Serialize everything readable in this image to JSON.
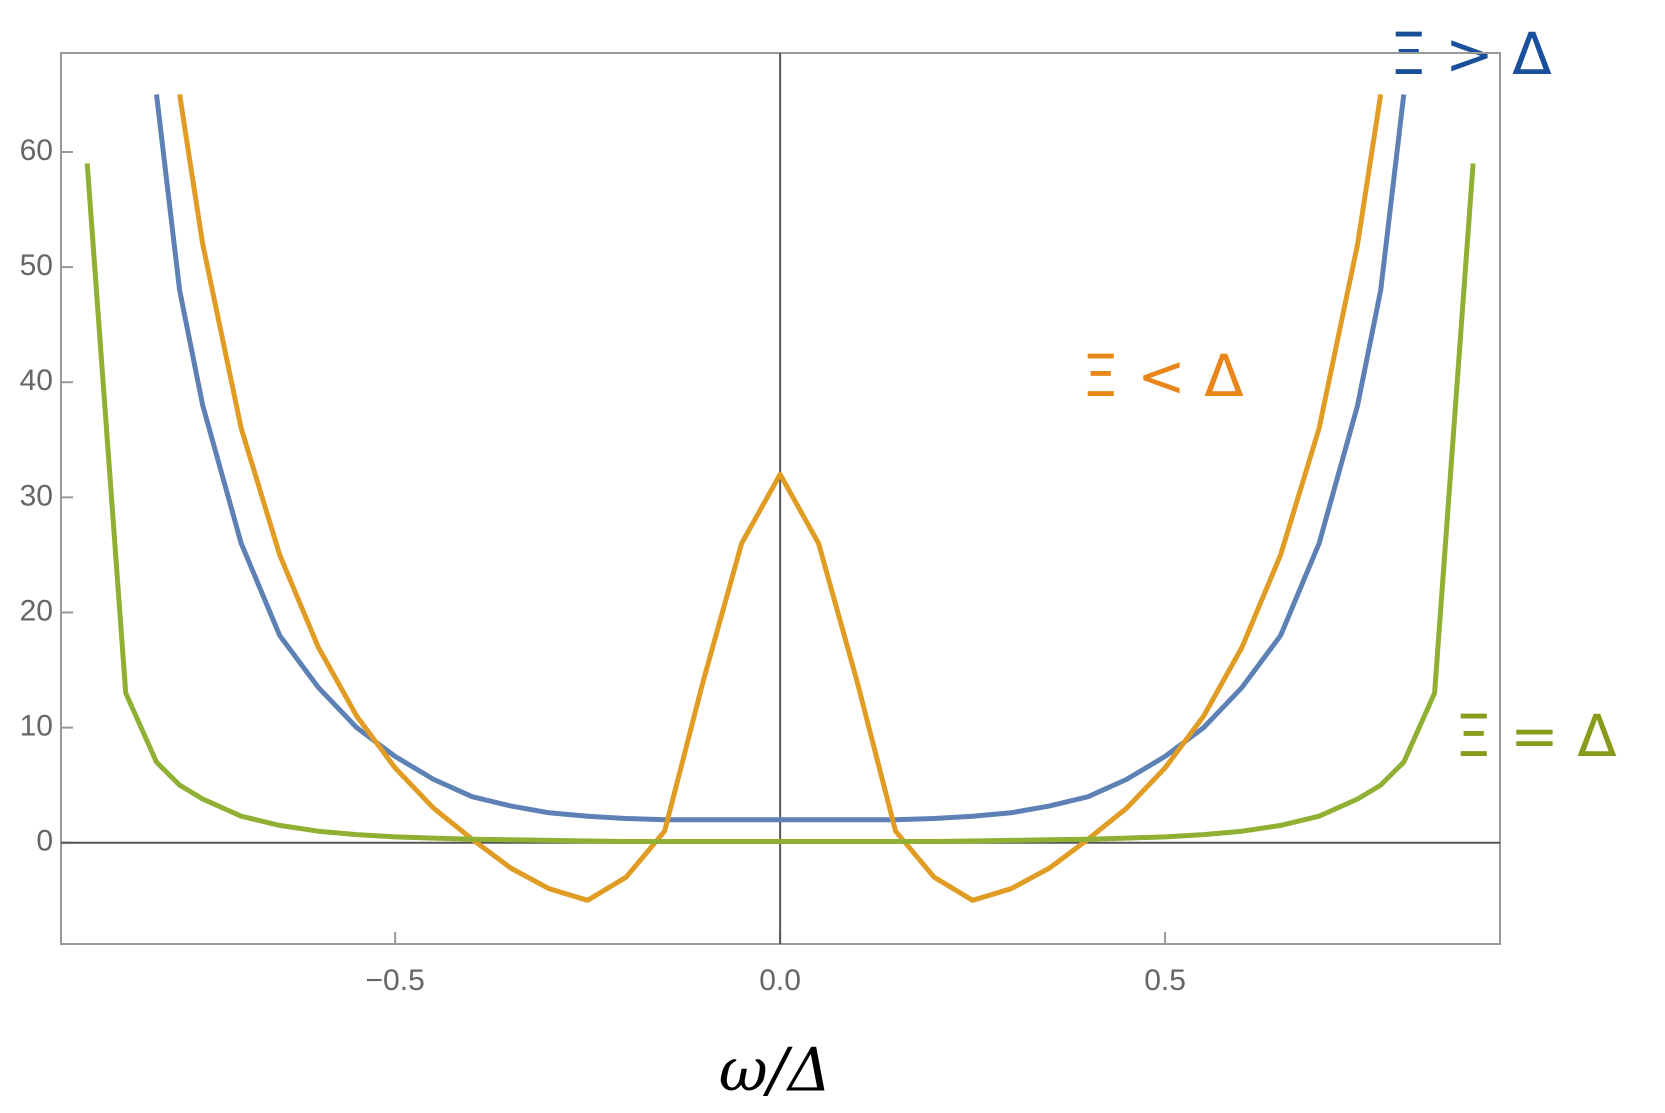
{
  "chart_data": {
    "type": "line",
    "x_label": "ω/Δ",
    "x": [
      -0.9,
      -0.85,
      -0.81,
      -0.78,
      -0.75,
      -0.7,
      -0.65,
      -0.6,
      -0.55,
      -0.5,
      -0.45,
      -0.4,
      -0.35,
      -0.3,
      -0.25,
      -0.2,
      -0.15,
      -0.1,
      -0.05,
      0,
      0.05,
      0.1,
      0.15,
      0.2,
      0.25,
      0.3,
      0.35,
      0.4,
      0.45,
      0.5,
      0.55,
      0.6,
      0.65,
      0.7,
      0.75,
      0.78,
      0.81,
      0.85,
      0.9
    ],
    "series": [
      {
        "color": "#5e81b5",
        "values": [
          null,
          null,
          65,
          48,
          38,
          26,
          18,
          13.5,
          10,
          7.5,
          5.5,
          4,
          3.2,
          2.6,
          2.3,
          2.1,
          2.0,
          2.0,
          2.0,
          2.0,
          2.0,
          2.0,
          2.0,
          2.1,
          2.3,
          2.6,
          3.2,
          4,
          5.5,
          7.5,
          10,
          13.5,
          18,
          26,
          38,
          48,
          65,
          null,
          null
        ]
      },
      {
        "color": "#e19c24",
        "values": [
          null,
          null,
          null,
          65,
          52,
          36,
          25,
          17,
          11,
          6.5,
          3,
          0.3,
          -2.2,
          -4,
          -5,
          -3,
          1,
          14,
          26,
          32,
          26,
          14,
          1,
          -3,
          -5,
          -4,
          -2.2,
          0.3,
          3,
          6.5,
          11,
          17,
          25,
          36,
          52,
          65,
          null,
          null,
          null
        ]
      },
      {
        "color": "#8fb032",
        "values": [
          59,
          13,
          7,
          5,
          3.8,
          2.3,
          1.5,
          1,
          0.7,
          0.5,
          0.4,
          0.3,
          0.25,
          0.2,
          0.15,
          0.1,
          0.1,
          0.1,
          0.1,
          0.1,
          0.1,
          0.1,
          0.1,
          0.1,
          0.15,
          0.2,
          0.25,
          0.3,
          0.4,
          0.5,
          0.7,
          1,
          1.5,
          2.3,
          3.8,
          5,
          7,
          13,
          59
        ]
      }
    ],
    "annotations": [
      {
        "text": "Ξ > Δ",
        "color": "#1a4f9c"
      },
      {
        "text": "Ξ < Δ",
        "color": "#e8861a"
      },
      {
        "text": "Ξ = Δ",
        "color": "#8a9a1a"
      }
    ],
    "xlim": [
      -0.934,
      0.935
    ],
    "ylim": [
      -8.8,
      68.6
    ],
    "xticks": [
      {
        "value": -0.5,
        "label": "−0.5"
      },
      {
        "value": 0,
        "label": "0.0"
      },
      {
        "value": 0.5,
        "label": "0.5"
      }
    ],
    "yticks": [
      0,
      10,
      20,
      30,
      40,
      50,
      60
    ]
  }
}
